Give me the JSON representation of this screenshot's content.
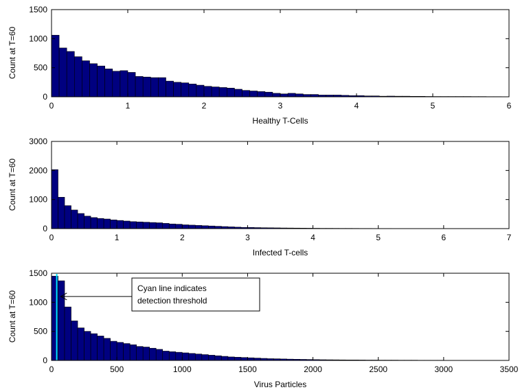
{
  "chart_data": [
    {
      "type": "bar",
      "xlabel": "Healthy T-Cells",
      "ylabel": "Count at T=60",
      "xlim": [
        0,
        6
      ],
      "ylim": [
        0,
        1500
      ],
      "xticks": [
        0,
        1,
        2,
        3,
        4,
        5,
        6
      ],
      "yticks": [
        0,
        500,
        1000,
        1500
      ],
      "bin_width": 0.1,
      "values": [
        1060,
        840,
        780,
        690,
        620,
        570,
        530,
        480,
        440,
        450,
        420,
        350,
        340,
        330,
        330,
        270,
        250,
        240,
        220,
        200,
        180,
        170,
        160,
        150,
        130,
        110,
        100,
        90,
        80,
        60,
        50,
        60,
        50,
        40,
        40,
        30,
        30,
        30,
        25,
        20,
        20,
        15,
        15,
        10,
        12,
        10,
        10,
        8,
        8,
        6,
        5,
        5,
        5,
        5,
        5,
        4,
        4,
        3,
        3,
        2
      ]
    },
    {
      "type": "bar",
      "xlabel": "Infected T-cells",
      "ylabel": "Count at T=60",
      "xlim": [
        0,
        7
      ],
      "ylim": [
        0,
        3000
      ],
      "xticks": [
        0,
        1,
        2,
        3,
        4,
        5,
        6,
        7
      ],
      "yticks": [
        0,
        1000,
        2000,
        3000
      ],
      "bin_width": 0.1,
      "values": [
        2030,
        1080,
        790,
        640,
        520,
        430,
        380,
        350,
        330,
        300,
        280,
        260,
        240,
        230,
        220,
        210,
        200,
        180,
        160,
        150,
        130,
        120,
        110,
        100,
        90,
        80,
        70,
        60,
        50,
        40,
        40,
        35,
        30,
        28,
        25,
        22,
        20,
        18,
        16,
        14,
        12,
        10,
        10,
        9,
        8,
        8,
        7,
        6,
        6,
        5,
        5,
        5,
        4,
        4,
        4,
        3,
        3,
        3,
        3,
        2,
        2,
        2,
        2,
        2,
        2,
        2,
        1,
        1,
        1,
        1
      ]
    },
    {
      "type": "bar",
      "xlabel": "Virus Particles",
      "ylabel": "Count at T=60",
      "xlim": [
        0,
        3500
      ],
      "ylim": [
        0,
        1500
      ],
      "xticks": [
        0,
        500,
        1000,
        1500,
        2000,
        2500,
        3000,
        3500
      ],
      "yticks": [
        0,
        500,
        1000,
        1500
      ],
      "bin_width": 50,
      "values": [
        1450,
        1370,
        920,
        680,
        560,
        500,
        460,
        420,
        380,
        330,
        310,
        290,
        270,
        240,
        230,
        210,
        190,
        160,
        150,
        140,
        130,
        120,
        110,
        100,
        90,
        80,
        70,
        60,
        55,
        50,
        45,
        40,
        35,
        30,
        28,
        25,
        22,
        20,
        18,
        16,
        14,
        12,
        11,
        10,
        9,
        8,
        8,
        7,
        6,
        6,
        5,
        5,
        5,
        4,
        4,
        4,
        3,
        3,
        3,
        3,
        2,
        2,
        2,
        2,
        2,
        2,
        1,
        1,
        1,
        1
      ],
      "threshold": 40,
      "threshold_color": "#00e5ff",
      "annotation": {
        "lines": [
          "Cyan line indicates",
          "detection threshold"
        ],
        "arrow_target": [
          70,
          1100
        ]
      }
    }
  ],
  "colors": {
    "bar_fill": "#000080",
    "bar_edge": "#000000",
    "axis": "#000000"
  }
}
